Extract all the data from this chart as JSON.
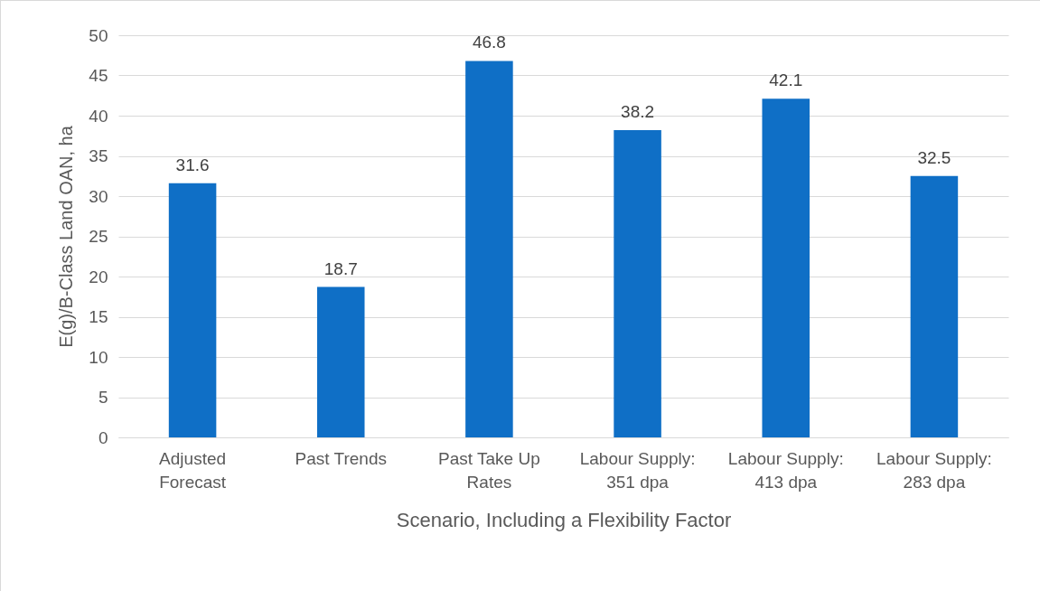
{
  "chart_data": {
    "type": "bar",
    "xlabel": "Scenario, Including a Flexibility Factor",
    "ylabel": "E(g)/B-Class Land OAN, ha",
    "categories": [
      "Adjusted Forecast",
      "Past Trends",
      "Past Take Up Rates",
      "Labour Supply: 351 dpa",
      "Labour Supply: 413 dpa",
      "Labour Supply: 283 dpa"
    ],
    "values": [
      31.6,
      18.7,
      46.8,
      38.2,
      42.1,
      32.5
    ],
    "color": "#0f6fc6",
    "ylim": [
      0,
      50
    ],
    "yticks": [
      0,
      5,
      10,
      15,
      20,
      25,
      30,
      35,
      40,
      45,
      50
    ],
    "grid": "y",
    "data_labels": true
  }
}
